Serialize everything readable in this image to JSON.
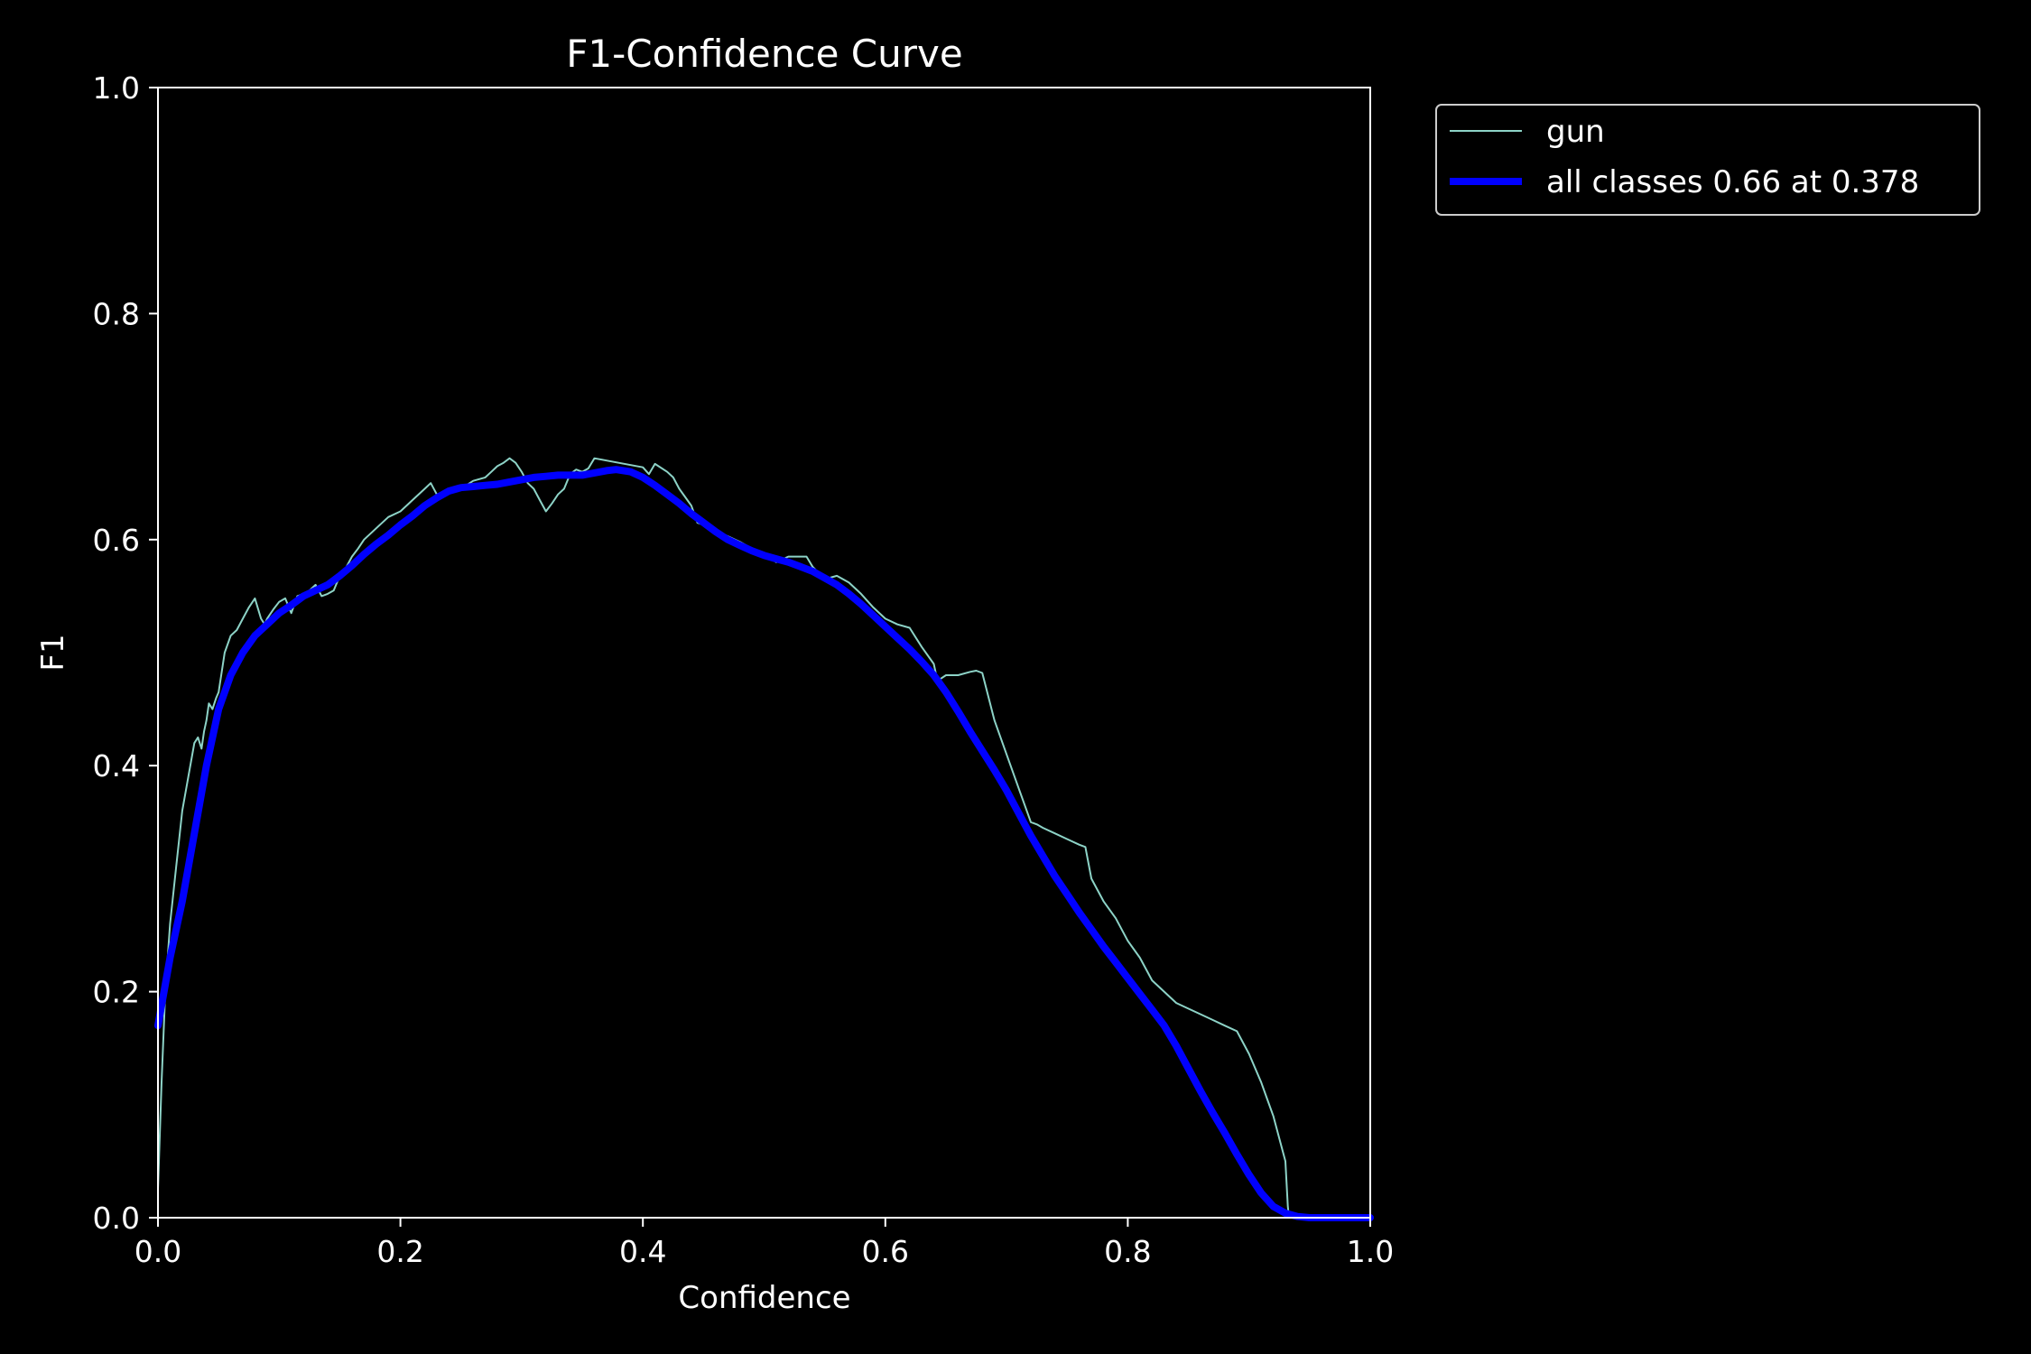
{
  "chart_data": {
    "type": "line",
    "title": "F1-Confidence Curve",
    "xlabel": "Confidence",
    "ylabel": "F1",
    "xlim": [
      0,
      1
    ],
    "ylim": [
      0,
      1
    ],
    "xticks": [
      "0.0",
      "0.2",
      "0.4",
      "0.6",
      "0.8",
      "1.0"
    ],
    "yticks": [
      "0.0",
      "0.2",
      "0.4",
      "0.6",
      "0.8",
      "1.0"
    ],
    "grid": false,
    "legend_position": "outside-top-right",
    "series": [
      {
        "name": "gun",
        "color": "#8dd3c7",
        "line": "thin",
        "x": [
          0.0,
          0.003,
          0.006,
          0.01,
          0.015,
          0.02,
          0.025,
          0.03,
          0.033,
          0.036,
          0.038,
          0.04,
          0.042,
          0.045,
          0.048,
          0.05,
          0.055,
          0.06,
          0.065,
          0.07,
          0.075,
          0.08,
          0.085,
          0.088,
          0.09,
          0.095,
          0.1,
          0.105,
          0.11,
          0.115,
          0.12,
          0.125,
          0.13,
          0.135,
          0.14,
          0.145,
          0.15,
          0.155,
          0.16,
          0.165,
          0.17,
          0.18,
          0.19,
          0.2,
          0.21,
          0.22,
          0.225,
          0.23,
          0.24,
          0.25,
          0.26,
          0.27,
          0.275,
          0.28,
          0.285,
          0.29,
          0.295,
          0.3,
          0.305,
          0.31,
          0.315,
          0.32,
          0.325,
          0.33,
          0.335,
          0.34,
          0.345,
          0.35,
          0.355,
          0.36,
          0.37,
          0.38,
          0.39,
          0.4,
          0.405,
          0.41,
          0.42,
          0.425,
          0.43,
          0.44,
          0.445,
          0.45,
          0.46,
          0.47,
          0.48,
          0.49,
          0.5,
          0.51,
          0.52,
          0.53,
          0.535,
          0.54,
          0.55,
          0.56,
          0.57,
          0.58,
          0.59,
          0.6,
          0.61,
          0.62,
          0.63,
          0.64,
          0.643,
          0.65,
          0.66,
          0.67,
          0.675,
          0.68,
          0.69,
          0.7,
          0.71,
          0.72,
          0.725,
          0.73,
          0.74,
          0.75,
          0.76,
          0.765,
          0.77,
          0.78,
          0.79,
          0.8,
          0.81,
          0.82,
          0.83,
          0.84,
          0.85,
          0.86,
          0.87,
          0.88,
          0.89,
          0.9,
          0.91,
          0.915,
          0.92,
          0.925,
          0.93,
          0.932,
          0.933,
          0.94,
          0.96,
          0.98,
          1.0
        ],
        "y": [
          0.025,
          0.12,
          0.2,
          0.26,
          0.31,
          0.36,
          0.39,
          0.42,
          0.425,
          0.415,
          0.43,
          0.44,
          0.455,
          0.45,
          0.46,
          0.465,
          0.5,
          0.515,
          0.52,
          0.53,
          0.54,
          0.548,
          0.53,
          0.525,
          0.53,
          0.538,
          0.545,
          0.548,
          0.535,
          0.55,
          0.552,
          0.555,
          0.56,
          0.55,
          0.552,
          0.555,
          0.568,
          0.575,
          0.585,
          0.592,
          0.6,
          0.61,
          0.62,
          0.625,
          0.635,
          0.645,
          0.65,
          0.64,
          0.642,
          0.645,
          0.652,
          0.655,
          0.66,
          0.665,
          0.668,
          0.672,
          0.668,
          0.66,
          0.65,
          0.645,
          0.635,
          0.625,
          0.632,
          0.64,
          0.645,
          0.658,
          0.662,
          0.66,
          0.663,
          0.672,
          0.67,
          0.668,
          0.666,
          0.664,
          0.658,
          0.667,
          0.66,
          0.655,
          0.645,
          0.63,
          0.615,
          0.613,
          0.608,
          0.603,
          0.598,
          0.592,
          0.588,
          0.58,
          0.585,
          0.585,
          0.585,
          0.576,
          0.565,
          0.568,
          0.562,
          0.552,
          0.54,
          0.53,
          0.525,
          0.522,
          0.505,
          0.49,
          0.475,
          0.48,
          0.48,
          0.483,
          0.484,
          0.482,
          0.44,
          0.41,
          0.38,
          0.35,
          0.348,
          0.345,
          0.34,
          0.335,
          0.33,
          0.328,
          0.3,
          0.28,
          0.265,
          0.245,
          0.23,
          0.21,
          0.2,
          0.19,
          0.185,
          0.18,
          0.175,
          0.17,
          0.165,
          0.145,
          0.12,
          0.105,
          0.09,
          0.07,
          0.05,
          0.01,
          0.0,
          0.0,
          0.0,
          0.0,
          0.0
        ]
      },
      {
        "name": "all classes 0.66 at 0.378",
        "color": "#0000ff",
        "line": "thick",
        "x": [
          0.0,
          0.01,
          0.02,
          0.03,
          0.04,
          0.05,
          0.06,
          0.07,
          0.08,
          0.09,
          0.1,
          0.11,
          0.12,
          0.13,
          0.14,
          0.15,
          0.16,
          0.17,
          0.18,
          0.19,
          0.2,
          0.21,
          0.22,
          0.23,
          0.24,
          0.25,
          0.26,
          0.27,
          0.28,
          0.29,
          0.3,
          0.31,
          0.32,
          0.33,
          0.34,
          0.35,
          0.36,
          0.37,
          0.378,
          0.39,
          0.4,
          0.41,
          0.42,
          0.43,
          0.44,
          0.45,
          0.46,
          0.47,
          0.48,
          0.49,
          0.5,
          0.51,
          0.52,
          0.53,
          0.54,
          0.55,
          0.56,
          0.57,
          0.58,
          0.59,
          0.6,
          0.61,
          0.62,
          0.63,
          0.64,
          0.65,
          0.66,
          0.67,
          0.68,
          0.69,
          0.7,
          0.71,
          0.72,
          0.73,
          0.74,
          0.75,
          0.76,
          0.77,
          0.78,
          0.79,
          0.8,
          0.81,
          0.82,
          0.83,
          0.84,
          0.85,
          0.86,
          0.87,
          0.88,
          0.89,
          0.9,
          0.91,
          0.92,
          0.93,
          0.94,
          0.95,
          0.96,
          0.97,
          0.98,
          0.99,
          1.0
        ],
        "y": [
          0.17,
          0.23,
          0.28,
          0.34,
          0.4,
          0.45,
          0.48,
          0.5,
          0.515,
          0.525,
          0.535,
          0.542,
          0.55,
          0.555,
          0.56,
          0.568,
          0.577,
          0.587,
          0.596,
          0.604,
          0.613,
          0.621,
          0.63,
          0.637,
          0.643,
          0.646,
          0.647,
          0.648,
          0.649,
          0.651,
          0.653,
          0.655,
          0.656,
          0.657,
          0.657,
          0.657,
          0.659,
          0.661,
          0.662,
          0.66,
          0.655,
          0.648,
          0.64,
          0.632,
          0.623,
          0.615,
          0.607,
          0.6,
          0.595,
          0.59,
          0.586,
          0.583,
          0.58,
          0.576,
          0.572,
          0.566,
          0.56,
          0.552,
          0.543,
          0.533,
          0.523,
          0.513,
          0.503,
          0.492,
          0.48,
          0.465,
          0.448,
          0.43,
          0.413,
          0.396,
          0.378,
          0.358,
          0.338,
          0.32,
          0.302,
          0.286,
          0.27,
          0.255,
          0.24,
          0.226,
          0.212,
          0.198,
          0.184,
          0.17,
          0.152,
          0.132,
          0.112,
          0.093,
          0.075,
          0.056,
          0.038,
          0.022,
          0.01,
          0.004,
          0.001,
          0.0,
          0.0,
          0.0,
          0.0,
          0.0,
          0.0
        ]
      }
    ]
  }
}
